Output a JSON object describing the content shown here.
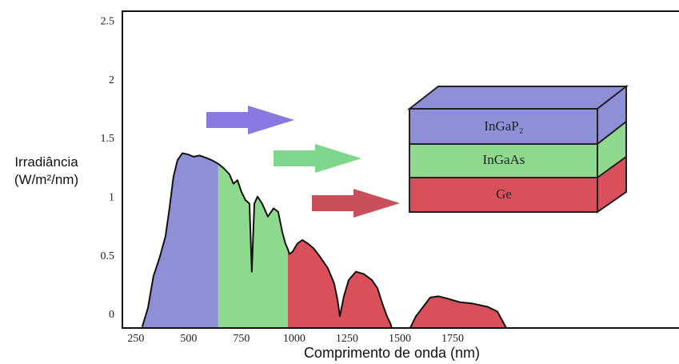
{
  "chart_data": {
    "type": "area",
    "xlabel": "Comprimento de onda (nm)",
    "ylabel": "Irradiância (W/m²/nm)",
    "xlim": [
      186,
      2822
    ],
    "ylim": [
      -0.11,
      2.59
    ],
    "xticks": [
      250,
      500,
      750,
      1000,
      1250,
      1500,
      1750
    ],
    "yticks": [
      0,
      0.5,
      1,
      1.5,
      2,
      2.5
    ],
    "series": [
      {
        "name": "InGaP₂",
        "color": "#8f8fd8",
        "x": [
          280,
          307,
          333,
          364,
          390,
          409,
          428,
          447,
          470,
          496,
          523,
          553,
          583,
          610,
          640
        ],
        "values": [
          -0.1,
          0.06,
          0.33,
          0.5,
          0.67,
          0.91,
          1.18,
          1.32,
          1.38,
          1.37,
          1.35,
          1.36,
          1.34,
          1.32,
          1.29
        ]
      },
      {
        "name": "InGaAs",
        "color": "#8fd98f",
        "x": [
          640,
          667,
          693,
          712,
          731,
          750,
          769,
          788,
          799,
          811,
          826,
          848,
          875,
          902,
          924,
          943,
          958,
          970
        ],
        "values": [
          1.29,
          1.25,
          1.2,
          1.12,
          1.15,
          1.05,
          0.98,
          0.95,
          0.37,
          0.95,
          1.01,
          0.95,
          0.84,
          0.91,
          0.88,
          0.71,
          0.61,
          0.56
        ]
      },
      {
        "name": "Ge",
        "color": "#d9505a",
        "x": [
          970,
          977,
          992,
          1015,
          1038,
          1064,
          1091,
          1121,
          1159,
          1189,
          1205,
          1216,
          1235,
          1258,
          1292,
          1330,
          1367,
          1394,
          1417,
          1439,
          1455,
          1462,
          1505,
          1549,
          1576,
          1606,
          1644,
          1682,
          1727,
          1784,
          1841,
          1917,
          1962,
          1992,
          2004
        ],
        "values": [
          0.56,
          0.52,
          0.54,
          0.61,
          0.64,
          0.61,
          0.57,
          0.5,
          0.4,
          0.27,
          0.13,
          -0.01,
          0.16,
          0.3,
          0.37,
          0.35,
          0.3,
          0.23,
          0.1,
          -0.01,
          -0.07,
          -0.11,
          null,
          -0.11,
          -0.01,
          0.06,
          0.15,
          0.16,
          0.14,
          0.11,
          0.1,
          0.07,
          0.03,
          -0.07,
          -0.11
        ]
      }
    ]
  }
}
